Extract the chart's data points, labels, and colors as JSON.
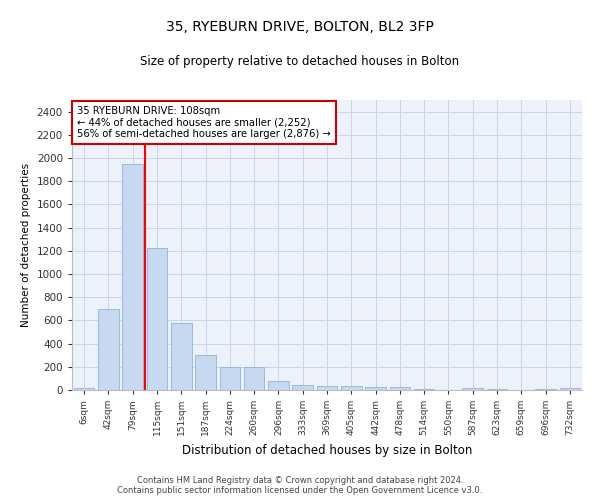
{
  "title1": "35, RYEBURN DRIVE, BOLTON, BL2 3FP",
  "title2": "Size of property relative to detached houses in Bolton",
  "xlabel": "Distribution of detached houses by size in Bolton",
  "ylabel": "Number of detached properties",
  "categories": [
    "6sqm",
    "42sqm",
    "79sqm",
    "115sqm",
    "151sqm",
    "187sqm",
    "224sqm",
    "260sqm",
    "296sqm",
    "333sqm",
    "369sqm",
    "405sqm",
    "442sqm",
    "478sqm",
    "514sqm",
    "550sqm",
    "587sqm",
    "623sqm",
    "659sqm",
    "696sqm",
    "732sqm"
  ],
  "values": [
    15,
    695,
    1950,
    1220,
    575,
    305,
    200,
    200,
    80,
    45,
    35,
    35,
    30,
    30,
    10,
    0,
    20,
    5,
    0,
    5,
    15
  ],
  "bar_color": "#c6d9f0",
  "bar_edge_color": "#8cb4e0",
  "grid_color": "#c8d4e8",
  "annotation_lines": [
    "35 RYEBURN DRIVE: 108sqm",
    "← 44% of detached houses are smaller (2,252)",
    "56% of semi-detached houses are larger (2,876) →"
  ],
  "annotation_box_color": "#cc0000",
  "redline_x": 2.5,
  "ylim": [
    0,
    2500
  ],
  "yticks": [
    0,
    200,
    400,
    600,
    800,
    1000,
    1200,
    1400,
    1600,
    1800,
    2000,
    2200,
    2400
  ],
  "footer1": "Contains HM Land Registry data © Crown copyright and database right 2024.",
  "footer2": "Contains public sector information licensed under the Open Government Licence v3.0.",
  "fig_width": 6.0,
  "fig_height": 5.0,
  "bg_color": "#edf2fa"
}
